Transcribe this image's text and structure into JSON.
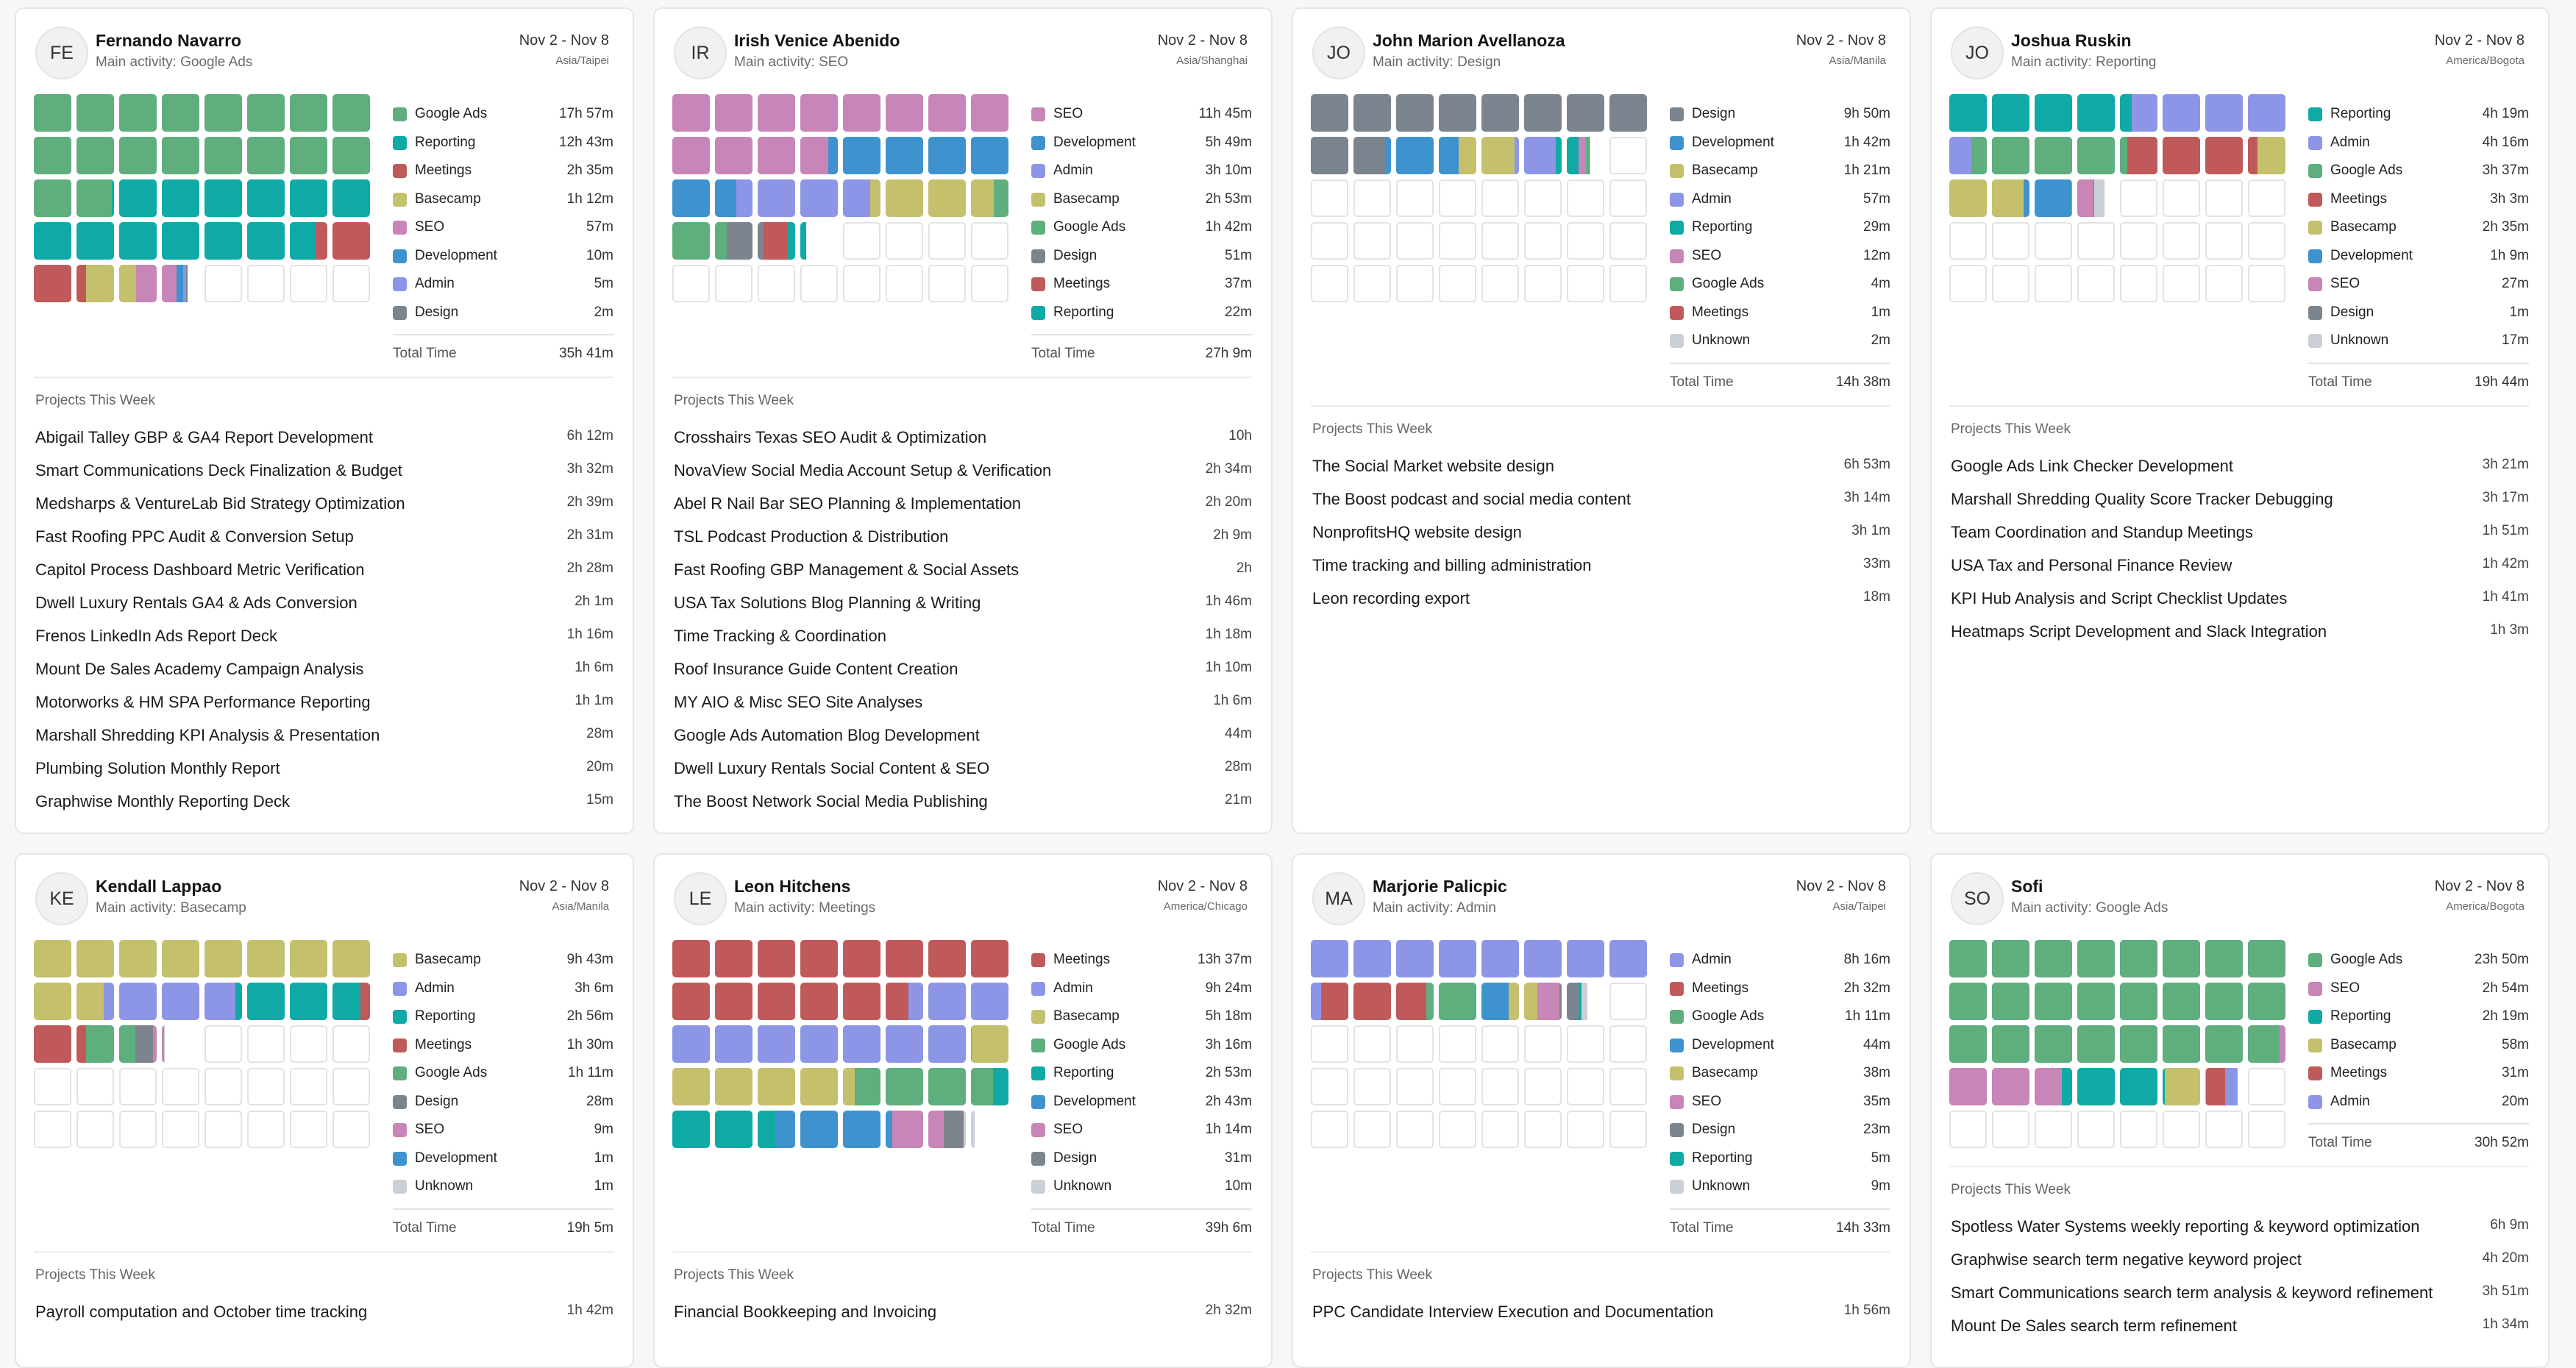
{
  "category_colors": {
    "Google Ads": "#5fae7d",
    "Reporting": "#10aaa6",
    "Meetings": "#c05a5a",
    "Basecamp": "#c4c06c",
    "SEO": "#c785b8",
    "Development": "#3e93cf",
    "Admin": "#8d96e6",
    "Design": "#7c858d",
    "Unknown": "#cbd0d6"
  },
  "total_label": "Total Time",
  "projects_heading": "Projects This Week",
  "cards": [
    {
      "initials": "FE",
      "name": "Fernando Navarro",
      "main_activity": "Main activity: Google Ads",
      "dates": "Nov 2 - Nov 8",
      "timezone": "Asia/Taipei",
      "categories": [
        {
          "name": "Google Ads",
          "time": "17h 57m",
          "minutes": 1077
        },
        {
          "name": "Reporting",
          "time": "12h 43m",
          "minutes": 763
        },
        {
          "name": "Meetings",
          "time": "2h 35m",
          "minutes": 155
        },
        {
          "name": "Basecamp",
          "time": "1h 12m",
          "minutes": 72
        },
        {
          "name": "SEO",
          "time": "57m",
          "minutes": 57
        },
        {
          "name": "Development",
          "time": "10m",
          "minutes": 10
        },
        {
          "name": "Admin",
          "time": "5m",
          "minutes": 5
        },
        {
          "name": "Design",
          "time": "2m",
          "minutes": 2
        }
      ],
      "total": "35h 41m",
      "projects": [
        {
          "name": "Abigail Talley GBP & GA4 Report Development",
          "time": "6h 12m"
        },
        {
          "name": "Smart Communications Deck Finalization & Budget",
          "time": "3h 32m"
        },
        {
          "name": "Medsharps & VentureLab Bid Strategy Optimization",
          "time": "2h 39m"
        },
        {
          "name": "Fast Roofing PPC Audit & Conversion Setup",
          "time": "2h 31m"
        },
        {
          "name": "Capitol Process Dashboard Metric Verification",
          "time": "2h 28m"
        },
        {
          "name": "Dwell Luxury Rentals GA4 & Ads Conversion",
          "time": "2h 1m"
        },
        {
          "name": "Frenos LinkedIn Ads Report Deck",
          "time": "1h 16m"
        },
        {
          "name": "Mount De Sales Academy Campaign Analysis",
          "time": "1h 6m"
        },
        {
          "name": "Motorworks & HM SPA Performance Reporting",
          "time": "1h 1m"
        },
        {
          "name": "Marshall Shredding KPI Analysis & Presentation",
          "time": "28m"
        },
        {
          "name": "Plumbing Solution Monthly Report",
          "time": "20m"
        },
        {
          "name": "Graphwise Monthly Reporting Deck",
          "time": "15m"
        }
      ]
    },
    {
      "initials": "IR",
      "name": "Irish Venice Abenido",
      "main_activity": "Main activity: SEO",
      "dates": "Nov 2 - Nov 8",
      "timezone": "Asia/Shanghai",
      "categories": [
        {
          "name": "SEO",
          "time": "11h 45m",
          "minutes": 705
        },
        {
          "name": "Development",
          "time": "5h 49m",
          "minutes": 349
        },
        {
          "name": "Admin",
          "time": "3h 10m",
          "minutes": 190
        },
        {
          "name": "Basecamp",
          "time": "2h 53m",
          "minutes": 173
        },
        {
          "name": "Google Ads",
          "time": "1h 42m",
          "minutes": 102
        },
        {
          "name": "Design",
          "time": "51m",
          "minutes": 51
        },
        {
          "name": "Meetings",
          "time": "37m",
          "minutes": 37
        },
        {
          "name": "Reporting",
          "time": "22m",
          "minutes": 22
        }
      ],
      "total": "27h 9m",
      "projects": [
        {
          "name": "Crosshairs Texas SEO Audit & Optimization",
          "time": "10h"
        },
        {
          "name": "NovaView Social Media Account Setup & Verification",
          "time": "2h 34m"
        },
        {
          "name": "Abel R Nail Bar SEO Planning & Implementation",
          "time": "2h 20m"
        },
        {
          "name": "TSL Podcast Production & Distribution",
          "time": "2h 9m"
        },
        {
          "name": "Fast Roofing GBP Management & Social Assets",
          "time": "2h"
        },
        {
          "name": "USA Tax Solutions Blog Planning & Writing",
          "time": "1h 46m"
        },
        {
          "name": "Time Tracking & Coordination",
          "time": "1h 18m"
        },
        {
          "name": "Roof Insurance Guide Content Creation",
          "time": "1h 10m"
        },
        {
          "name": "MY AIO & Misc SEO Site Analyses",
          "time": "1h 6m"
        },
        {
          "name": "Google Ads Automation Blog Development",
          "time": "44m"
        },
        {
          "name": "Dwell Luxury Rentals Social Content & SEO",
          "time": "28m"
        },
        {
          "name": "The Boost Network Social Media Publishing",
          "time": "21m"
        }
      ]
    },
    {
      "initials": "JO",
      "name": "John Marion Avellanoza",
      "main_activity": "Main activity: Design",
      "dates": "Nov 2 - Nov 8",
      "timezone": "Asia/Manila",
      "categories": [
        {
          "name": "Design",
          "time": "9h 50m",
          "minutes": 590
        },
        {
          "name": "Development",
          "time": "1h 42m",
          "minutes": 102
        },
        {
          "name": "Basecamp",
          "time": "1h 21m",
          "minutes": 81
        },
        {
          "name": "Admin",
          "time": "57m",
          "minutes": 57
        },
        {
          "name": "Reporting",
          "time": "29m",
          "minutes": 29
        },
        {
          "name": "SEO",
          "time": "12m",
          "minutes": 12
        },
        {
          "name": "Google Ads",
          "time": "4m",
          "minutes": 4
        },
        {
          "name": "Meetings",
          "time": "1m",
          "minutes": 1
        },
        {
          "name": "Unknown",
          "time": "2m",
          "minutes": 2
        }
      ],
      "total": "14h 38m",
      "projects": [
        {
          "name": "The Social Market website design",
          "time": "6h 53m"
        },
        {
          "name": "The Boost podcast and social media content",
          "time": "3h 14m"
        },
        {
          "name": "NonprofitsHQ website design",
          "time": "3h 1m"
        },
        {
          "name": "Time tracking and billing administration",
          "time": "33m"
        },
        {
          "name": "Leon recording export",
          "time": "18m"
        }
      ]
    },
    {
      "initials": "JO",
      "name": "Joshua Ruskin",
      "main_activity": "Main activity: Reporting",
      "dates": "Nov 2 - Nov 8",
      "timezone": "America/Bogota",
      "categories": [
        {
          "name": "Reporting",
          "time": "4h 19m",
          "minutes": 259
        },
        {
          "name": "Admin",
          "time": "4h 16m",
          "minutes": 256
        },
        {
          "name": "Google Ads",
          "time": "3h 37m",
          "minutes": 217
        },
        {
          "name": "Meetings",
          "time": "3h 3m",
          "minutes": 183
        },
        {
          "name": "Basecamp",
          "time": "2h 35m",
          "minutes": 155
        },
        {
          "name": "Development",
          "time": "1h 9m",
          "minutes": 69
        },
        {
          "name": "SEO",
          "time": "27m",
          "minutes": 27
        },
        {
          "name": "Design",
          "time": "1m",
          "minutes": 1
        },
        {
          "name": "Unknown",
          "time": "17m",
          "minutes": 17
        }
      ],
      "total": "19h 44m",
      "projects": [
        {
          "name": "Google Ads Link Checker Development",
          "time": "3h 21m"
        },
        {
          "name": "Marshall Shredding Quality Score Tracker Debugging",
          "time": "3h 17m"
        },
        {
          "name": "Team Coordination and Standup Meetings",
          "time": "1h 51m"
        },
        {
          "name": "USA Tax and Personal Finance Review",
          "time": "1h 42m"
        },
        {
          "name": "KPI Hub Analysis and Script Checklist Updates",
          "time": "1h 41m"
        },
        {
          "name": "Heatmaps Script Development and Slack Integration",
          "time": "1h 3m"
        }
      ]
    },
    {
      "initials": "KE",
      "name": "Kendall Lappao",
      "main_activity": "Main activity: Basecamp",
      "dates": "Nov 2 - Nov 8",
      "timezone": "Asia/Manila",
      "categories": [
        {
          "name": "Basecamp",
          "time": "9h 43m",
          "minutes": 583
        },
        {
          "name": "Admin",
          "time": "3h 6m",
          "minutes": 186
        },
        {
          "name": "Reporting",
          "time": "2h 56m",
          "minutes": 176
        },
        {
          "name": "Meetings",
          "time": "1h 30m",
          "minutes": 90
        },
        {
          "name": "Google Ads",
          "time": "1h 11m",
          "minutes": 71
        },
        {
          "name": "Design",
          "time": "28m",
          "minutes": 28
        },
        {
          "name": "SEO",
          "time": "9m",
          "minutes": 9
        },
        {
          "name": "Development",
          "time": "1m",
          "minutes": 1
        },
        {
          "name": "Unknown",
          "time": "1m",
          "minutes": 1
        }
      ],
      "total": "19h 5m",
      "projects": [
        {
          "name": "Payroll computation and October time tracking",
          "time": "1h 42m"
        }
      ]
    },
    {
      "initials": "LE",
      "name": "Leon Hitchens",
      "main_activity": "Main activity: Meetings",
      "dates": "Nov 2 - Nov 8",
      "timezone": "America/Chicago",
      "categories": [
        {
          "name": "Meetings",
          "time": "13h 37m",
          "minutes": 817
        },
        {
          "name": "Admin",
          "time": "9h 24m",
          "minutes": 564
        },
        {
          "name": "Basecamp",
          "time": "5h 18m",
          "minutes": 318
        },
        {
          "name": "Google Ads",
          "time": "3h 16m",
          "minutes": 196
        },
        {
          "name": "Reporting",
          "time": "2h 53m",
          "minutes": 173
        },
        {
          "name": "Development",
          "time": "2h 43m",
          "minutes": 163
        },
        {
          "name": "SEO",
          "time": "1h 14m",
          "minutes": 74
        },
        {
          "name": "Design",
          "time": "31m",
          "minutes": 31
        },
        {
          "name": "Unknown",
          "time": "10m",
          "minutes": 10
        }
      ],
      "total": "39h 6m",
      "projects": [
        {
          "name": "Financial Bookkeeping and Invoicing",
          "time": "2h 32m"
        }
      ]
    },
    {
      "initials": "MA",
      "name": "Marjorie Palicpic",
      "main_activity": "Main activity: Admin",
      "dates": "Nov 2 - Nov 8",
      "timezone": "Asia/Taipei",
      "categories": [
        {
          "name": "Admin",
          "time": "8h 16m",
          "minutes": 496
        },
        {
          "name": "Meetings",
          "time": "2h 32m",
          "minutes": 152
        },
        {
          "name": "Google Ads",
          "time": "1h 11m",
          "minutes": 71
        },
        {
          "name": "Development",
          "time": "44m",
          "minutes": 44
        },
        {
          "name": "Basecamp",
          "time": "38m",
          "minutes": 38
        },
        {
          "name": "SEO",
          "time": "35m",
          "minutes": 35
        },
        {
          "name": "Design",
          "time": "23m",
          "minutes": 23
        },
        {
          "name": "Reporting",
          "time": "5m",
          "minutes": 5
        },
        {
          "name": "Unknown",
          "time": "9m",
          "minutes": 9
        }
      ],
      "total": "14h 33m",
      "projects": [
        {
          "name": "PPC Candidate Interview Execution and Documentation",
          "time": "1h 56m"
        }
      ]
    },
    {
      "initials": "SO",
      "name": "Sofi",
      "main_activity": "Main activity: Google Ads",
      "dates": "Nov 2 - Nov 8",
      "timezone": "America/Bogota",
      "categories": [
        {
          "name": "Google Ads",
          "time": "23h 50m",
          "minutes": 1430
        },
        {
          "name": "SEO",
          "time": "2h 54m",
          "minutes": 174
        },
        {
          "name": "Reporting",
          "time": "2h 19m",
          "minutes": 139
        },
        {
          "name": "Basecamp",
          "time": "58m",
          "minutes": 58
        },
        {
          "name": "Meetings",
          "time": "31m",
          "minutes": 31
        },
        {
          "name": "Admin",
          "time": "20m",
          "minutes": 20
        }
      ],
      "total": "30h 52m",
      "projects": [
        {
          "name": "Spotless Water Systems weekly reporting & keyword optimization",
          "time": "6h 9m"
        },
        {
          "name": "Graphwise search term negative keyword project",
          "time": "4h 20m"
        },
        {
          "name": "Smart Communications search term analysis & keyword refinement",
          "time": "3h 51m"
        },
        {
          "name": "Mount De Sales search term refinement",
          "time": "1h 34m"
        }
      ]
    }
  ]
}
